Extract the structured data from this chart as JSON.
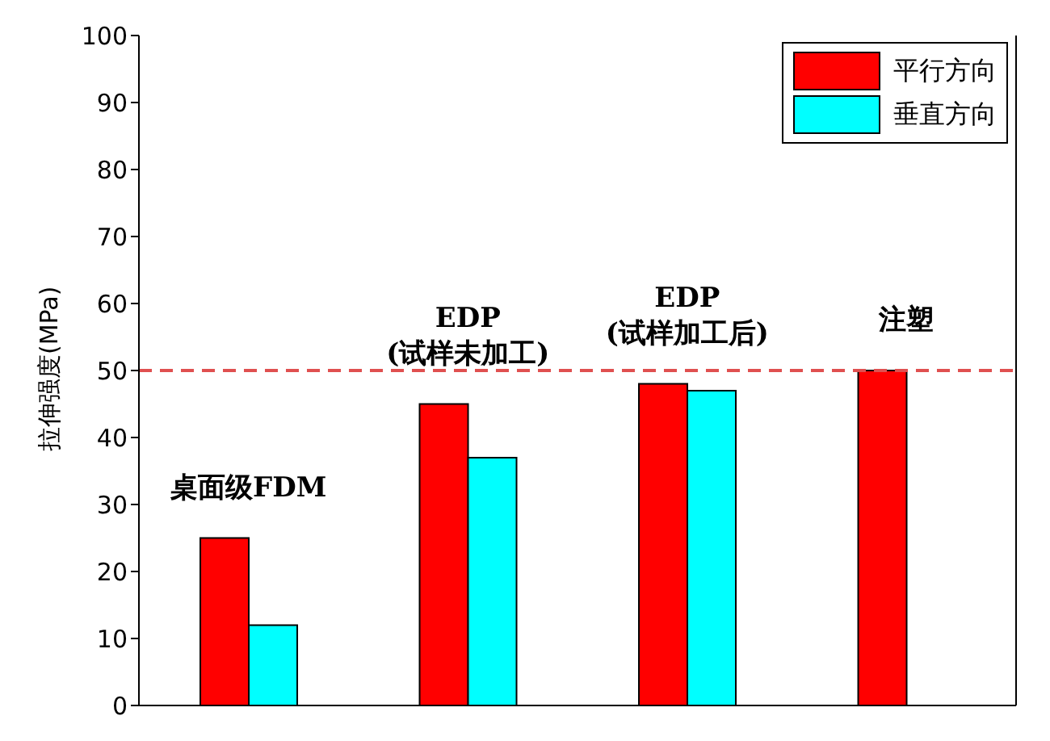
{
  "chart_data": {
    "type": "bar",
    "ylabel": "拉伸强度(MPa)",
    "categories": [
      "桌面级FDM",
      "EDP\n(试样未加工)",
      "EDP\n(试样加工后)",
      "注塑"
    ],
    "series": [
      {
        "name": "平行方向",
        "color": "#ff0000",
        "values": [
          25,
          45,
          48,
          50
        ]
      },
      {
        "name": "垂直方向",
        "color": "#00ffff",
        "values": [
          12,
          37,
          47,
          null
        ]
      }
    ],
    "ylim": [
      0,
      100
    ],
    "yticks": [
      0,
      10,
      20,
      30,
      40,
      50,
      60,
      70,
      80,
      90,
      100
    ],
    "ref_lines": [
      {
        "axis": "y",
        "value": 50,
        "color": "#e05050",
        "line_style": "dashed"
      }
    ],
    "legend": "top right",
    "grid": false
  }
}
